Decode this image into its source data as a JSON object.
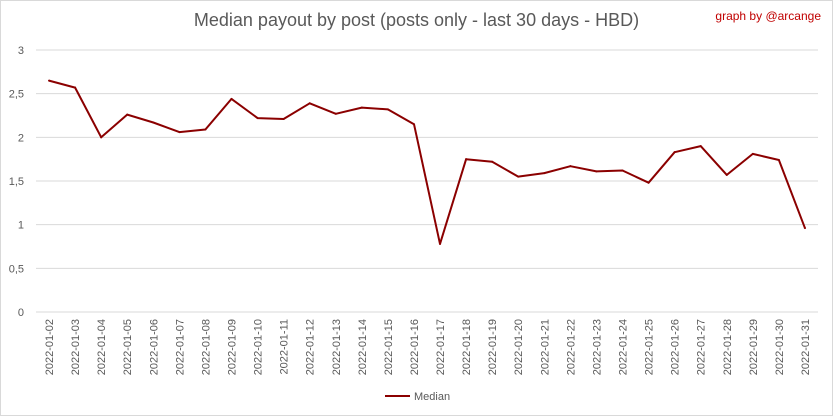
{
  "header": {
    "credit": "graph by @arcange"
  },
  "chart_data": {
    "type": "line",
    "title": "Median payout by post (posts only - last 30 days - HBD)",
    "xlabel": "",
    "ylabel": "",
    "ylim": [
      0,
      3
    ],
    "yticks": [
      "0",
      "0,5",
      "1",
      "1,5",
      "2",
      "2,5",
      "3"
    ],
    "grid": true,
    "legend_position": "bottom",
    "categories": [
      "2022-01-02",
      "2022-01-03",
      "2022-01-04",
      "2022-01-05",
      "2022-01-06",
      "2022-01-07",
      "2022-01-08",
      "2022-01-09",
      "2022-01-10",
      "2022-01-11",
      "2022-01-12",
      "2022-01-13",
      "2022-01-14",
      "2022-01-15",
      "2022-01-16",
      "2022-01-17",
      "2022-01-18",
      "2022-01-19",
      "2022-01-20",
      "2022-01-21",
      "2022-01-22",
      "2022-01-23",
      "2022-01-24",
      "2022-01-25",
      "2022-01-26",
      "2022-01-27",
      "2022-01-28",
      "2022-01-29",
      "2022-01-30",
      "2022-01-31"
    ],
    "series": [
      {
        "name": "Median",
        "color": "#8b0000",
        "values": [
          2.65,
          2.57,
          2.0,
          2.26,
          2.17,
          2.06,
          2.09,
          2.44,
          2.22,
          2.21,
          2.39,
          2.27,
          2.34,
          2.32,
          2.15,
          0.78,
          1.75,
          1.72,
          1.55,
          1.59,
          1.67,
          1.61,
          1.62,
          1.48,
          1.83,
          1.9,
          1.57,
          1.81,
          1.74,
          0.96
        ]
      }
    ]
  }
}
